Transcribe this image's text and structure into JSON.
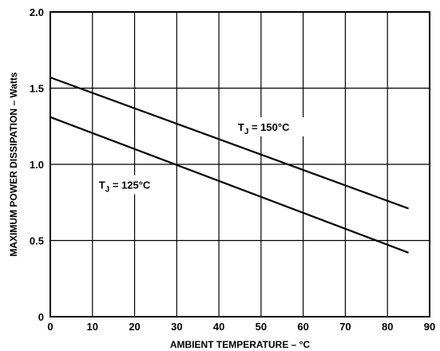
{
  "chart_data": {
    "type": "line",
    "xlabel": "AMBIENT TEMPERATURE – °C",
    "ylabel": "MAXIMUM POWER DISSIPATION – Watts",
    "xlim": [
      0,
      90
    ],
    "ylim": [
      0,
      2.0
    ],
    "x_ticks": [
      "0",
      "10",
      "20",
      "30",
      "40",
      "50",
      "60",
      "70",
      "80",
      "90"
    ],
    "y_ticks": [
      "0",
      "0.5",
      "1.0",
      "1.5",
      "2.0"
    ],
    "grid": true,
    "series": [
      {
        "x": [
          0,
          85
        ],
        "y": [
          1.57,
          0.71
        ]
      },
      {
        "x": [
          0,
          85
        ],
        "y": [
          1.31,
          0.42
        ]
      }
    ],
    "annotations": [
      {
        "main": "T",
        "sub": "J",
        "rest": " = 150°C",
        "x": 44.5,
        "y": 1.22
      },
      {
        "main": "T",
        "sub": "J",
        "rest": " = 125°C",
        "x": 11.5,
        "y": 0.84
      }
    ],
    "colors": {
      "line": "#000000",
      "grid": "#000000",
      "background": "#ffffff"
    }
  }
}
